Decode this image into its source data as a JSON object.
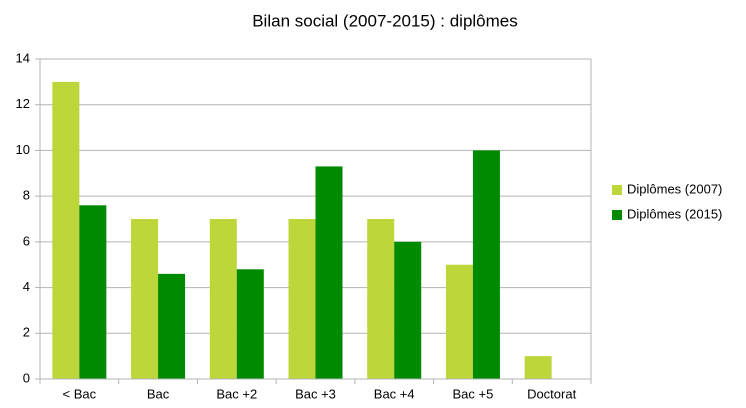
{
  "chart_data": {
    "type": "bar",
    "title": "Bilan social (2007-2015) : diplômes",
    "categories": [
      "< Bac",
      "Bac",
      "Bac +2",
      "Bac +3",
      "Bac +4",
      "Bac +5",
      "Doctorat"
    ],
    "series": [
      {
        "name": "Diplômes (2007)",
        "color": "#bdd63a",
        "values": [
          13,
          7,
          7,
          7,
          7,
          5,
          1
        ]
      },
      {
        "name": "Diplômes (2015)",
        "color": "#008a00",
        "values": [
          7.6,
          4.6,
          4.8,
          9.3,
          6,
          10,
          0
        ]
      }
    ],
    "ylim": [
      0,
      14
    ],
    "yticks": [
      0,
      2,
      4,
      6,
      8,
      10,
      12,
      14
    ],
    "grid": true,
    "legend": "right"
  }
}
